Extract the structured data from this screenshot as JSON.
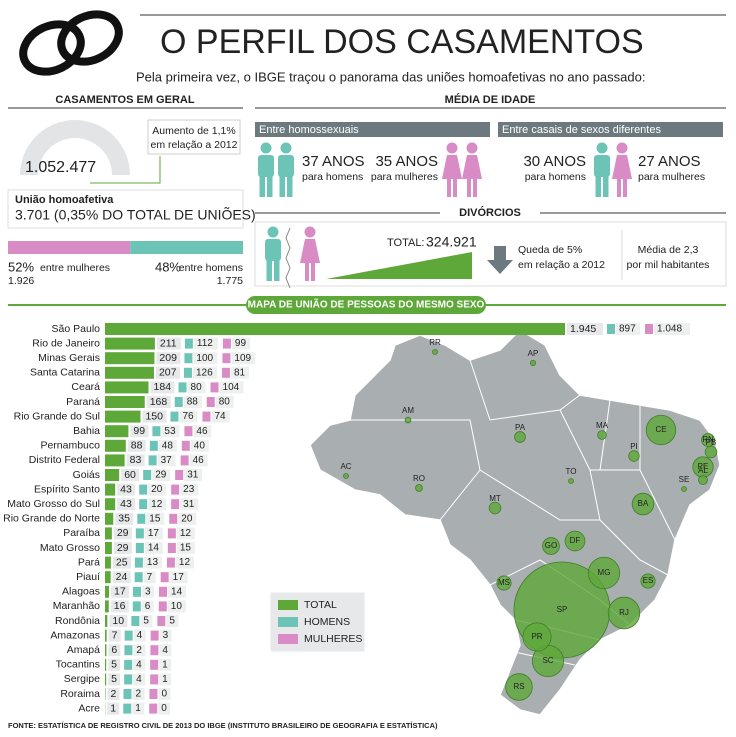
{
  "header": {
    "title": "O PERFIL DOS CASAMENTOS",
    "subtitle": "Pela primeira vez, o IBGE traçou o panorama das uniões homoafetivas no ano passado:"
  },
  "general": {
    "heading": "CASAMENTOS EM GERAL",
    "total": "1.052.477",
    "note": [
      "Aumento de 1,1%",
      "em relação a 2012"
    ],
    "same_sex_label": "União homoafetiva",
    "same_sex_total": "3.701 (0,35% DO TOTAL DE UNIÕES)",
    "shares": [
      {
        "value": 52,
        "label": "52%",
        "text": "entre mulheres",
        "count": "1.926",
        "color": "#d88bc4"
      },
      {
        "value": 48,
        "label": "48%",
        "text": "entre homens",
        "count": "1.775",
        "color": "#6cc4b6"
      }
    ]
  },
  "age": {
    "heading": "MÉDIA DE IDADE",
    "groups": [
      {
        "title": "Entre homossexuais",
        "items": [
          {
            "value": "37 ANOS",
            "text": "para homens"
          },
          {
            "value": "35 ANOS",
            "text": "para mulheres"
          }
        ]
      },
      {
        "title": "Entre casais de sexos diferentes",
        "items": [
          {
            "value": "30 ANOS",
            "text": "para homens"
          },
          {
            "value": "27 ANOS",
            "text": "para mulheres"
          }
        ]
      }
    ]
  },
  "divorces": {
    "heading": "DIVÓRCIOS",
    "total_label": "TOTAL:",
    "total": "324.921",
    "change": [
      "Queda de 5%",
      "em relação a 2012"
    ],
    "rate": [
      "Média de 2,3",
      "por mil habitantes"
    ]
  },
  "chart_data": {
    "type": "bar",
    "orientation": "horizontal",
    "title": "MAPA DE UNIÃO DE PESSOAS DO MESMO SEXO",
    "categories": [
      "São Paulo",
      "Rio de Janeiro",
      "Minas Gerais",
      "Santa Catarina",
      "Ceará",
      "Paraná",
      "Rio Grande do Sul",
      "Bahia",
      "Pernambuco",
      "Distrito Federal",
      "Goiás",
      "Espírito Santo",
      "Mato Grosso do Sul",
      "Rio Grande do Norte",
      "Paraíba",
      "Mato Grosso",
      "Pará",
      "Piauí",
      "Alagoas",
      "Maranhão",
      "Rondônia",
      "Amazonas",
      "Amapá",
      "Tocantins",
      "Sergipe",
      "Roraima",
      "Acre"
    ],
    "state_codes": [
      "SP",
      "RJ",
      "MG",
      "SC",
      "CE",
      "PR",
      "RS",
      "BA",
      "PE",
      "DF",
      "GO",
      "ES",
      "MS",
      "RN",
      "PB",
      "MT",
      "PA",
      "PI",
      "AL",
      "MA",
      "RO",
      "AM",
      "AP",
      "TO",
      "SE",
      "RR",
      "AC"
    ],
    "series": [
      {
        "name": "TOTAL",
        "color": "#5ea83a",
        "values": [
          1945,
          211,
          209,
          207,
          184,
          168,
          150,
          99,
          88,
          83,
          60,
          43,
          43,
          35,
          29,
          29,
          25,
          24,
          17,
          16,
          10,
          7,
          6,
          5,
          5,
          2,
          1
        ],
        "value_labels": [
          "1.945",
          "211",
          "209",
          "207",
          "184",
          "168",
          "150",
          "99",
          "88",
          "83",
          "60",
          "43",
          "43",
          "35",
          "29",
          "29",
          "25",
          "24",
          "17",
          "16",
          "10",
          "7",
          "6",
          "5",
          "5",
          "2",
          "1"
        ]
      },
      {
        "name": "HOMENS",
        "color": "#6cc4b6",
        "values": [
          897,
          112,
          100,
          126,
          80,
          88,
          76,
          53,
          48,
          37,
          29,
          20,
          12,
          15,
          17,
          14,
          13,
          7,
          3,
          6,
          5,
          4,
          2,
          4,
          4,
          2,
          1
        ],
        "value_labels": [
          "897",
          "112",
          "100",
          "126",
          "80",
          "88",
          "76",
          "53",
          "48",
          "37",
          "29",
          "20",
          "12",
          "15",
          "17",
          "14",
          "13",
          "7",
          "3",
          "6",
          "5",
          "4",
          "2",
          "4",
          "4",
          "2",
          "1"
        ]
      },
      {
        "name": "MULHERES",
        "color": "#d88bc4",
        "values": [
          1048,
          99,
          109,
          81,
          104,
          80,
          74,
          46,
          40,
          46,
          31,
          23,
          31,
          20,
          12,
          15,
          12,
          17,
          14,
          10,
          5,
          3,
          4,
          1,
          1,
          0,
          0
        ],
        "value_labels": [
          "1.048",
          "99",
          "109",
          "81",
          "104",
          "80",
          "74",
          "46",
          "40",
          "46",
          "31",
          "23",
          "31",
          "20",
          "12",
          "15",
          "12",
          "17",
          "14",
          "10",
          "5",
          "3",
          "4",
          "1",
          "1",
          "0",
          "0"
        ]
      }
    ]
  },
  "footer": "FONTE: ESTATÍSTICA DE REGISTRO CIVIL DE 2013 DO IBGE (INSTITUTO BRASILEIRO DE GEOGRAFIA E ESTATÍSTICA)"
}
